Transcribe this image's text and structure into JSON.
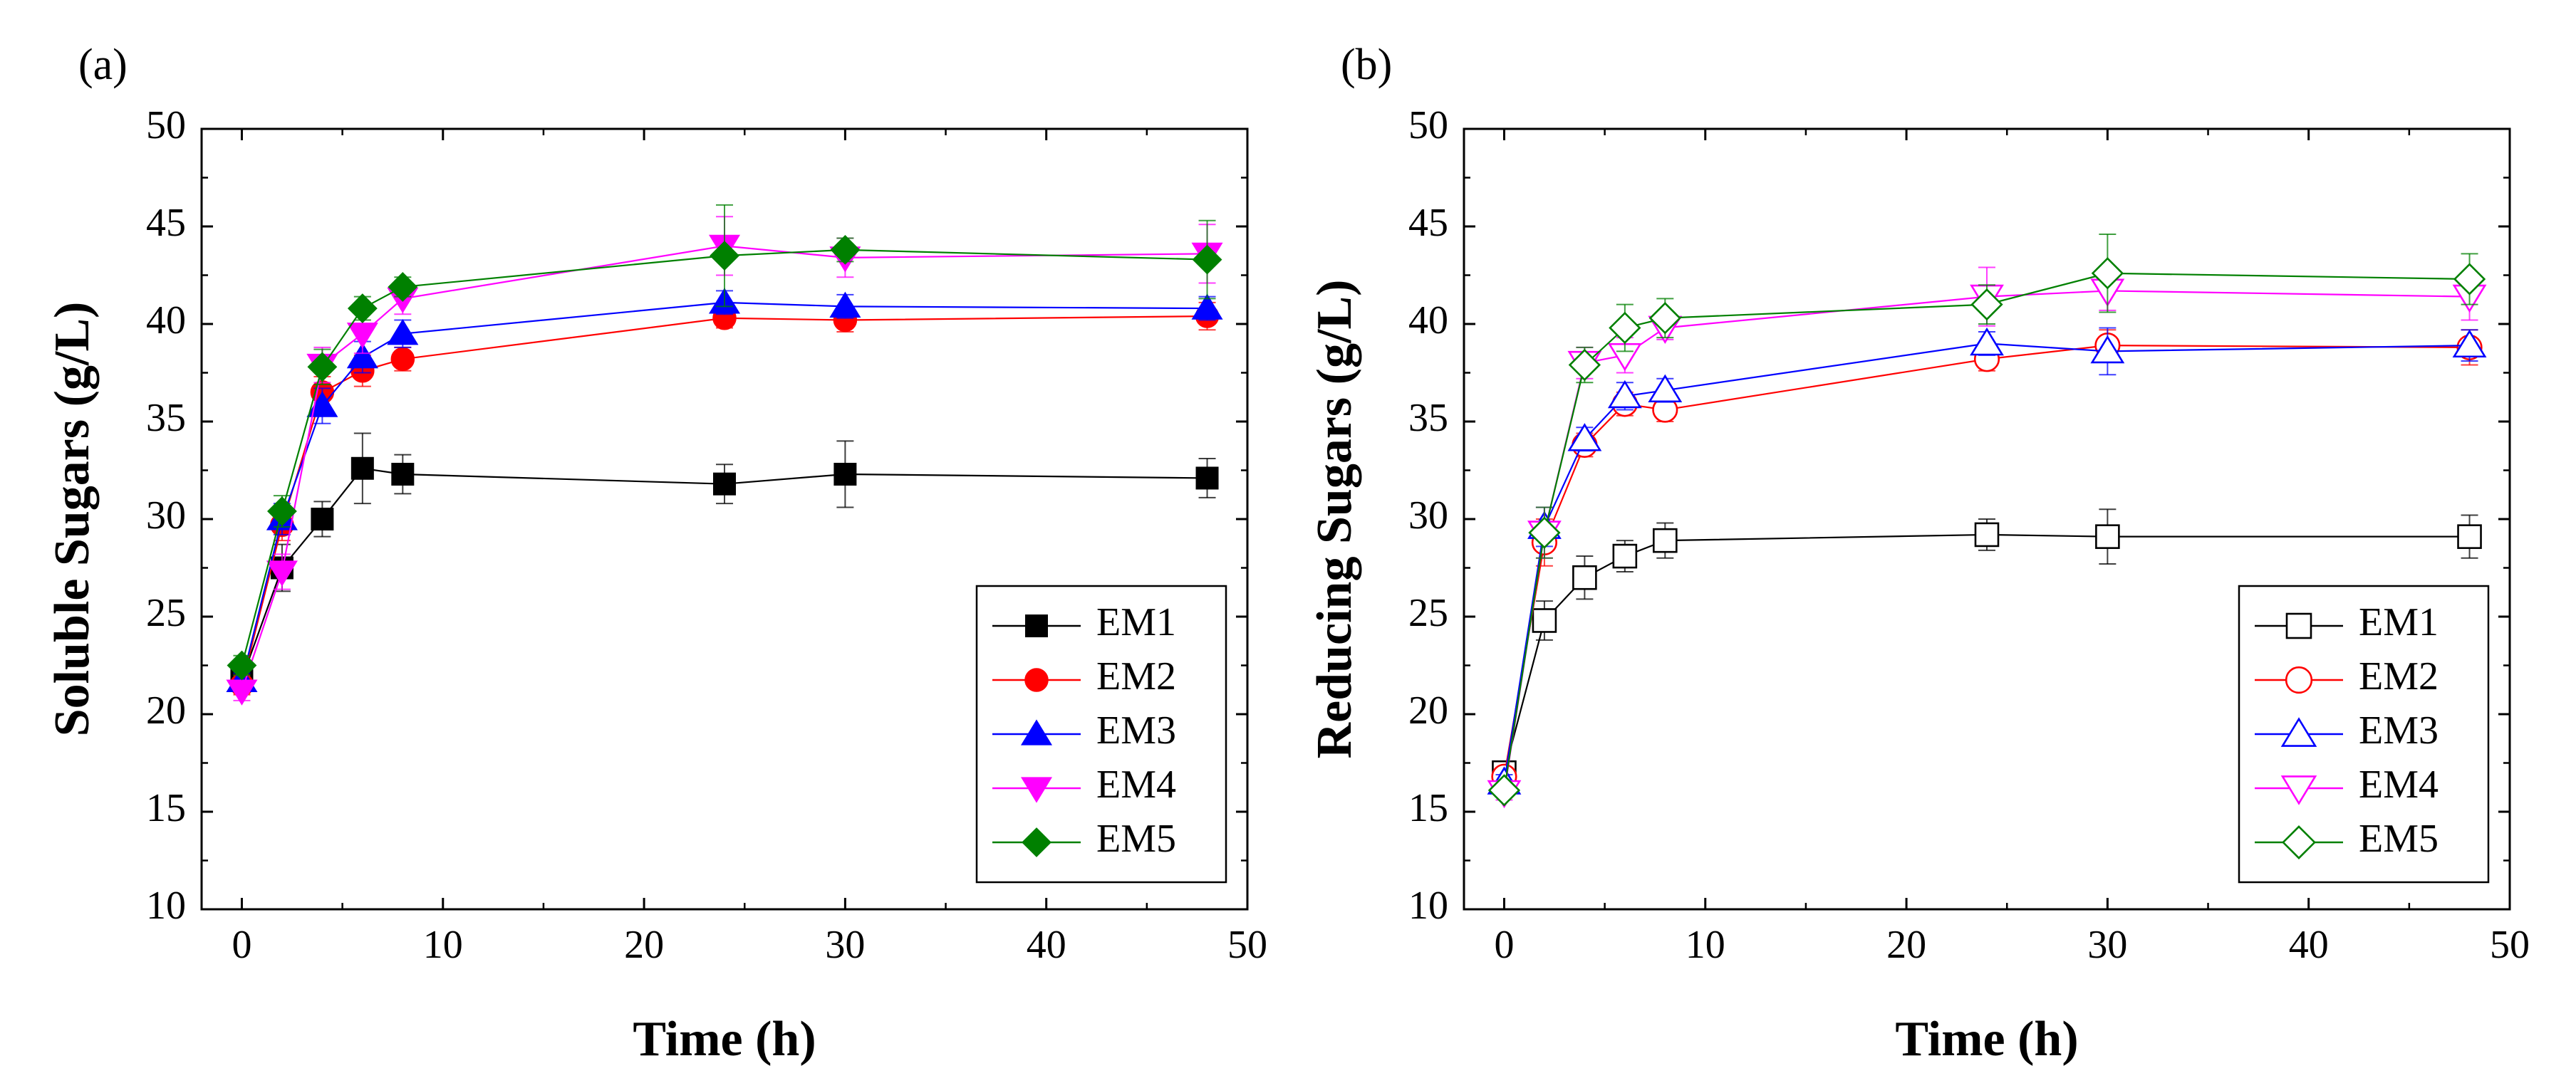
{
  "chart_data": [
    {
      "type": "line",
      "panel_label": "(a)",
      "title": "",
      "xlabel": "Time (h)",
      "ylabel": "Soluble Sugars (g/L)",
      "xlim": [
        -2,
        50
      ],
      "ylim": [
        10,
        50
      ],
      "xticks": [
        0,
        10,
        20,
        30,
        40,
        50
      ],
      "yticks": [
        10,
        15,
        20,
        25,
        30,
        35,
        40,
        45,
        50
      ],
      "grid": false,
      "marker_fill": "filled",
      "legend_position": "bottom-right",
      "x": [
        0,
        2,
        4,
        6,
        8,
        24,
        30,
        48
      ],
      "series": [
        {
          "name": "EM1",
          "color": "#000000",
          "marker": "square",
          "values": [
            21.8,
            27.5,
            30.0,
            32.6,
            32.3,
            31.8,
            32.3,
            32.1
          ],
          "errors": [
            0.5,
            1.2,
            0.9,
            1.8,
            1.0,
            1.0,
            1.7,
            1.0
          ]
        },
        {
          "name": "EM2",
          "color": "#ff0000",
          "marker": "circle",
          "values": [
            21.5,
            29.7,
            36.5,
            37.6,
            38.2,
            40.3,
            40.2,
            40.4
          ],
          "errors": [
            0.5,
            0.8,
            0.8,
            0.8,
            0.6,
            0.5,
            0.6,
            0.7
          ]
        },
        {
          "name": "EM3",
          "color": "#0000ff",
          "marker": "triangle-up",
          "values": [
            21.7,
            30.0,
            35.8,
            38.3,
            39.5,
            41.1,
            40.9,
            40.8
          ],
          "errors": [
            0.4,
            0.8,
            0.9,
            0.8,
            0.7,
            0.6,
            0.6,
            0.6
          ]
        },
        {
          "name": "EM4",
          "color": "#ff00ff",
          "marker": "triangle-down",
          "values": [
            21.2,
            27.3,
            37.9,
            39.5,
            41.3,
            44.0,
            43.4,
            43.6
          ],
          "errors": [
            0.5,
            0.9,
            0.9,
            1.0,
            0.8,
            1.5,
            1.0,
            1.5
          ]
        },
        {
          "name": "EM5",
          "color": "#008000",
          "marker": "diamond",
          "values": [
            22.5,
            30.4,
            37.8,
            40.8,
            41.9,
            43.5,
            43.8,
            43.3
          ],
          "errors": [
            0.5,
            0.8,
            0.9,
            0.6,
            0.5,
            2.6,
            0.6,
            2.0
          ]
        }
      ]
    },
    {
      "type": "line",
      "panel_label": "(b)",
      "title": "",
      "xlabel": "Time (h)",
      "ylabel": "Reducing Sugars (g/L)",
      "xlim": [
        -2,
        50
      ],
      "ylim": [
        10,
        50
      ],
      "xticks": [
        0,
        10,
        20,
        30,
        40,
        50
      ],
      "yticks": [
        10,
        15,
        20,
        25,
        30,
        35,
        40,
        45,
        50
      ],
      "grid": false,
      "marker_fill": "hollow",
      "legend_position": "bottom-right",
      "x": [
        0,
        2,
        4,
        6,
        8,
        24,
        30,
        48
      ],
      "series": [
        {
          "name": "EM1",
          "color": "#000000",
          "marker": "square",
          "values": [
            17.0,
            24.8,
            27.0,
            28.1,
            28.9,
            29.2,
            29.1,
            29.1
          ],
          "errors": [
            0.4,
            1.0,
            1.1,
            0.8,
            0.9,
            0.8,
            1.4,
            1.1
          ]
        },
        {
          "name": "EM2",
          "color": "#ff0000",
          "marker": "circle",
          "values": [
            16.8,
            28.8,
            33.8,
            35.9,
            35.6,
            38.2,
            38.9,
            38.8
          ],
          "errors": [
            0.4,
            1.2,
            0.6,
            0.6,
            0.6,
            0.6,
            0.8,
            0.9
          ]
        },
        {
          "name": "EM3",
          "color": "#0000ff",
          "marker": "triangle-up",
          "values": [
            16.5,
            29.6,
            34.1,
            36.3,
            36.6,
            39.0,
            38.6,
            38.9
          ],
          "errors": [
            0.4,
            1.0,
            0.6,
            0.7,
            0.6,
            0.6,
            1.2,
            0.8
          ]
        },
        {
          "name": "EM4",
          "color": "#ff00ff",
          "marker": "triangle-down",
          "values": [
            16.0,
            29.3,
            38.0,
            38.4,
            39.8,
            41.4,
            41.7,
            41.4
          ],
          "errors": [
            0.4,
            1.3,
            0.8,
            0.9,
            0.6,
            1.5,
            1.0,
            1.2
          ]
        },
        {
          "name": "EM5",
          "color": "#008000",
          "marker": "diamond",
          "values": [
            16.1,
            29.3,
            37.9,
            39.8,
            40.3,
            41.0,
            42.6,
            42.3
          ],
          "errors": [
            0.3,
            1.3,
            0.9,
            1.2,
            1.0,
            1.0,
            2.0,
            1.3
          ]
        }
      ]
    }
  ]
}
